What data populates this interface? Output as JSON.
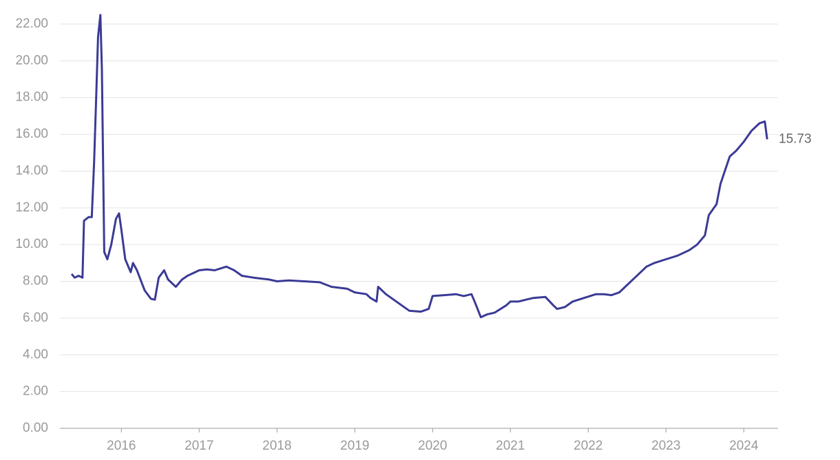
{
  "chart_data": {
    "type": "line",
    "x": [
      2015.36,
      2015.4,
      2015.45,
      2015.5,
      2015.52,
      2015.58,
      2015.62,
      2015.65,
      2015.68,
      2015.7,
      2015.73,
      2015.75,
      2015.78,
      2015.82,
      2015.87,
      2015.93,
      2015.97,
      2016.0,
      2016.05,
      2016.12,
      2016.15,
      2016.2,
      2016.3,
      2016.38,
      2016.43,
      2016.48,
      2016.55,
      2016.6,
      2016.7,
      2016.78,
      2016.85,
      2017.0,
      2017.1,
      2017.2,
      2017.35,
      2017.45,
      2017.55,
      2017.7,
      2017.9,
      2018.0,
      2018.15,
      2018.35,
      2018.55,
      2018.7,
      2018.9,
      2019.0,
      2019.15,
      2019.2,
      2019.28,
      2019.3,
      2019.4,
      2019.5,
      2019.6,
      2019.7,
      2019.85,
      2019.95,
      2020.0,
      2020.15,
      2020.3,
      2020.4,
      2020.5,
      2020.55,
      2020.62,
      2020.7,
      2020.8,
      2020.95,
      2021.0,
      2021.1,
      2021.2,
      2021.3,
      2021.45,
      2021.55,
      2021.6,
      2021.7,
      2021.8,
      2021.95,
      2022.1,
      2022.2,
      2022.3,
      2022.4,
      2022.5,
      2022.6,
      2022.75,
      2022.85,
      2023.0,
      2023.15,
      2023.3,
      2023.4,
      2023.5,
      2023.55,
      2023.65,
      2023.7,
      2023.82,
      2023.9,
      2024.0,
      2024.1,
      2024.2,
      2024.27,
      2024.3
    ],
    "series": [
      {
        "color": "#3b3a96",
        "values": [
          8.4,
          8.2,
          8.3,
          8.2,
          11.3,
          11.5,
          11.5,
          14.5,
          18.5,
          21.3,
          22.5,
          19.5,
          9.6,
          9.2,
          10.0,
          11.4,
          11.7,
          10.8,
          9.2,
          8.5,
          9.0,
          8.6,
          7.5,
          7.05,
          7.0,
          8.2,
          8.6,
          8.1,
          7.7,
          8.1,
          8.3,
          8.6,
          8.65,
          8.6,
          8.8,
          8.6,
          8.3,
          8.2,
          8.1,
          8.0,
          8.05,
          8.0,
          7.95,
          7.7,
          7.6,
          7.4,
          7.3,
          7.1,
          6.9,
          7.7,
          7.3,
          7.0,
          6.7,
          6.4,
          6.35,
          6.5,
          7.2,
          7.25,
          7.3,
          7.2,
          7.3,
          6.8,
          6.05,
          6.2,
          6.3,
          6.7,
          6.9,
          6.9,
          7.0,
          7.1,
          7.15,
          6.7,
          6.5,
          6.6,
          6.9,
          7.1,
          7.3,
          7.3,
          7.25,
          7.4,
          7.8,
          8.2,
          8.8,
          9.0,
          9.2,
          9.4,
          9.7,
          10.0,
          10.5,
          11.6,
          12.2,
          13.3,
          14.8,
          15.1,
          15.6,
          16.2,
          16.6,
          16.7,
          15.73
        ]
      }
    ],
    "annotation": {
      "text": "15.73",
      "value": 15.73
    },
    "xlim": [
      2015.21,
      2024.44
    ],
    "xticks": [
      2016,
      2017,
      2018,
      2019,
      2020,
      2021,
      2022,
      2023,
      2024
    ],
    "ylim": [
      0,
      22
    ],
    "yticks": [
      {
        "value": 0,
        "label": "0.00"
      },
      {
        "value": 2,
        "label": "2.00"
      },
      {
        "value": 4,
        "label": "4.00"
      },
      {
        "value": 6,
        "label": "6.00"
      },
      {
        "value": 8,
        "label": "8.00"
      },
      {
        "value": 10,
        "label": "10.00"
      },
      {
        "value": 12,
        "label": "12.00"
      },
      {
        "value": 14,
        "label": "14.00"
      },
      {
        "value": 16,
        "label": "16.00"
      },
      {
        "value": 18,
        "label": "18.00"
      },
      {
        "value": 20,
        "label": "20.00"
      },
      {
        "value": 22,
        "label": "22.00"
      }
    ],
    "grid": true
  }
}
